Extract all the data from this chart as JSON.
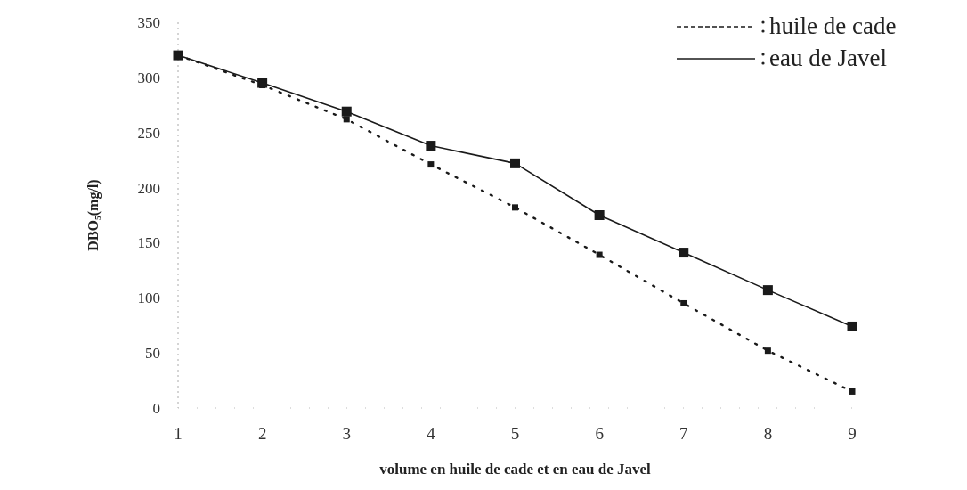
{
  "chart_data": {
    "type": "line",
    "xlabel": "volume en huile de cade et en eau de Javel",
    "ylabel": "DBO₅(mg/l)",
    "categories": [
      "1",
      "2",
      "3",
      "4",
      "5",
      "6",
      "7",
      "8",
      "9"
    ],
    "series": [
      {
        "name": "huile de cade",
        "color": "#1a1a1a",
        "line_style": "dotted",
        "values": [
          320,
          293,
          262,
          221,
          182,
          139,
          95,
          52,
          15
        ]
      },
      {
        "name": "eau de Javel",
        "color": "#1a1a1a",
        "line_style": "solid",
        "values": [
          320,
          295,
          269,
          238,
          222,
          175,
          141,
          107,
          74
        ]
      }
    ],
    "ylim": [
      0,
      350
    ],
    "yticks": [
      0,
      50,
      100,
      150,
      200,
      250,
      300,
      350
    ],
    "marker": "square",
    "legend": "top right",
    "grid": false
  }
}
